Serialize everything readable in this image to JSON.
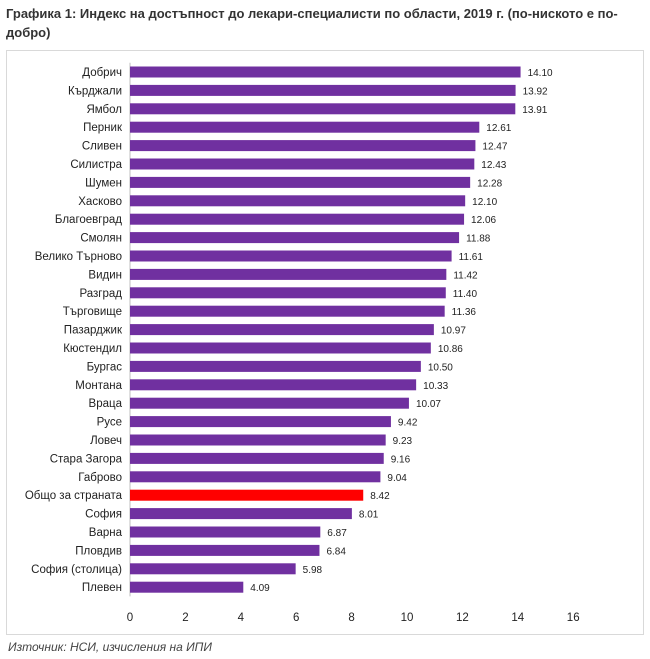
{
  "title": "Графика 1: Индекс на достъпност до лекари-специалисти по области, 2019 г. (по-ниското е по-добро)",
  "source": "Източник: НСИ, изчисления на ИПИ",
  "colors": {
    "bar": "#7030a0",
    "highlight": "#ff0000"
  },
  "chart_data": {
    "type": "bar",
    "orientation": "horizontal",
    "title": "Графика 1: Индекс на достъпност до лекари-специалисти по области, 2019 г. (по-ниското е по-добро)",
    "categories": [
      "Добрич",
      "Кърджали",
      "Ямбол",
      "Перник",
      "Сливен",
      "Силистра",
      "Шумен",
      "Хасково",
      "Благоевград",
      "Смолян",
      "Велико Търново",
      "Видин",
      "Разград",
      "Търговище",
      "Пазарджик",
      "Кюстендил",
      "Бургас",
      "Монтана",
      "Враца",
      "Русе",
      "Ловеч",
      "Стара Загора",
      "Габрово",
      "Общо за страната",
      "София",
      "Варна",
      "Пловдив",
      "София (столица)",
      "Плевен"
    ],
    "values": [
      14.1,
      13.92,
      13.91,
      12.61,
      12.47,
      12.43,
      12.28,
      12.1,
      12.06,
      11.88,
      11.61,
      11.42,
      11.4,
      11.36,
      10.97,
      10.86,
      10.5,
      10.33,
      10.07,
      9.42,
      9.23,
      9.16,
      9.04,
      8.42,
      8.01,
      6.87,
      6.84,
      5.98,
      4.09
    ],
    "value_labels": [
      "14.10",
      "13.92",
      "13.91",
      "12.61",
      "12.47",
      "12.43",
      "12.28",
      "12.10",
      "12.06",
      "11.88",
      "11.61",
      "11.42",
      "11.40",
      "11.36",
      "10.97",
      "10.86",
      "10.50",
      "10.33",
      "10.07",
      "9.42",
      "9.23",
      "9.16",
      "9.04",
      "8.42",
      "8.01",
      "6.87",
      "6.84",
      "5.98",
      "4.09"
    ],
    "highlight_category": "Общо за страната",
    "xlim": [
      0,
      16
    ],
    "xticks": [
      0,
      2,
      4,
      6,
      8,
      10,
      12,
      14,
      16
    ],
    "grid": false,
    "legend": "none"
  }
}
